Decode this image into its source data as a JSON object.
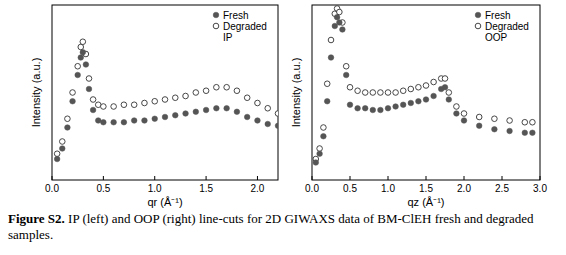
{
  "chart_data": [
    {
      "type": "scatter",
      "x_label": "qr (Å⁻¹)",
      "y_label": "Intensity (a.u.)",
      "annotation": "IP",
      "legend": "upper right",
      "tick_labels": "x",
      "xlim": [
        0,
        2.2
      ],
      "ylim": [
        0,
        10
      ],
      "xticks": [
        {
          "value": 0,
          "label": "0.0"
        },
        {
          "value": 0.5,
          "label": "0.5"
        },
        {
          "value": 1,
          "label": "1.0"
        },
        {
          "value": 1.5,
          "label": "1.5"
        },
        {
          "value": 2,
          "label": "2.0"
        }
      ],
      "x": [
        0.05,
        0.1,
        0.15,
        0.2,
        0.25,
        0.28,
        0.3,
        0.33,
        0.36,
        0.4,
        0.45,
        0.5,
        0.6,
        0.7,
        0.8,
        0.9,
        1.0,
        1.1,
        1.2,
        1.3,
        1.4,
        1.5,
        1.6,
        1.7,
        1.8,
        1.9,
        2.0,
        2.1,
        2.2
      ],
      "series": [
        {
          "name": "Fresh",
          "color": "#555555",
          "marker": "circle-filled",
          "values": [
            1.2,
            1.8,
            3.0,
            4.5,
            6.0,
            7.0,
            7.3,
            6.6,
            5.2,
            4.0,
            3.4,
            3.3,
            3.3,
            3.3,
            3.4,
            3.4,
            3.5,
            3.6,
            3.7,
            3.8,
            3.9,
            4.0,
            4.1,
            4.1,
            3.9,
            3.6,
            3.4,
            3.2,
            3.1
          ]
        },
        {
          "name": "Degraded",
          "color": "#333333",
          "marker": "circle-open",
          "values": [
            1.5,
            2.2,
            3.5,
            5.0,
            6.5,
            7.6,
            7.9,
            7.2,
            5.8,
            4.6,
            4.3,
            4.2,
            4.2,
            4.3,
            4.3,
            4.4,
            4.5,
            4.6,
            4.7,
            4.8,
            5.0,
            5.1,
            5.3,
            5.3,
            5.1,
            4.7,
            4.4,
            4.1,
            3.8
          ]
        }
      ]
    },
    {
      "type": "scatter",
      "x_label": "qz (Å⁻¹)",
      "y_label": "Intensity (a.u.)",
      "annotation": "OOP",
      "legend": "upper right",
      "tick_labels": "x",
      "xlim": [
        0,
        3.0
      ],
      "ylim": [
        0,
        10
      ],
      "xticks": [
        {
          "value": 0,
          "label": "0.0"
        },
        {
          "value": 0.5,
          "label": "0.5"
        },
        {
          "value": 1,
          "label": "1.0"
        },
        {
          "value": 1.5,
          "label": "1.5"
        },
        {
          "value": 2,
          "label": "2.0"
        },
        {
          "value": 2.5,
          "label": "2.5"
        },
        {
          "value": 3,
          "label": "3.0"
        }
      ],
      "x": [
        0.05,
        0.1,
        0.15,
        0.2,
        0.25,
        0.3,
        0.33,
        0.36,
        0.4,
        0.45,
        0.5,
        0.6,
        0.7,
        0.8,
        0.9,
        1.0,
        1.1,
        1.2,
        1.3,
        1.4,
        1.5,
        1.6,
        1.7,
        1.75,
        1.8,
        1.9,
        2.0,
        2.2,
        2.4,
        2.6,
        2.8,
        2.9
      ],
      "series": [
        {
          "name": "Fresh",
          "color": "#555555",
          "marker": "circle-filled",
          "values": [
            1.0,
            1.5,
            2.5,
            4.5,
            7.0,
            8.8,
            9.3,
            9.0,
            8.6,
            6.0,
            4.3,
            4.1,
            4.1,
            4.0,
            4.0,
            4.1,
            4.2,
            4.3,
            4.4,
            4.5,
            4.6,
            4.8,
            5.2,
            5.3,
            4.6,
            3.8,
            3.4,
            3.1,
            2.9,
            2.8,
            2.7,
            2.7
          ]
        },
        {
          "name": "Degraded",
          "color": "#333333",
          "marker": "circle-open",
          "values": [
            1.2,
            1.8,
            3.0,
            5.5,
            8.0,
            9.5,
            9.8,
            9.6,
            9.0,
            6.5,
            5.3,
            5.1,
            5.0,
            5.0,
            5.0,
            5.0,
            5.0,
            5.1,
            5.2,
            5.3,
            5.4,
            5.6,
            5.8,
            5.8,
            5.0,
            4.2,
            3.8,
            3.6,
            3.5,
            3.4,
            3.3,
            3.3
          ]
        }
      ]
    }
  ],
  "caption": {
    "label": "Figure S2.",
    "text": "IP (left) and OOP (right) line-cuts for 2D GIWAXS data of BM-ClEH fresh and degraded samples."
  }
}
